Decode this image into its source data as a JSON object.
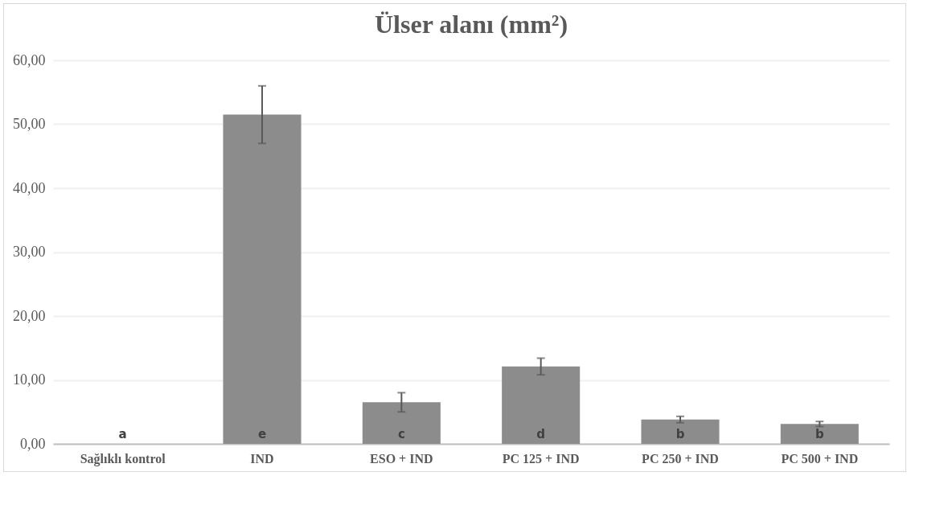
{
  "chart_data": {
    "type": "bar",
    "title": "Ülser alanı (mm²)",
    "categories": [
      "Sağlıklı kontrol",
      "IND",
      "ESO + IND",
      "PC 125 + IND",
      "PC 250 + IND",
      "PC 500 + IND"
    ],
    "values": [
      0,
      51.5,
      6.5,
      12.1,
      3.8,
      3.1
    ],
    "errors": [
      null,
      4.5,
      1.5,
      1.3,
      0.5,
      0.4
    ],
    "color": "#8c8c8c",
    "ylim": [
      0,
      60
    ],
    "yticks": [
      {
        "value": 0,
        "label": "0,00"
      },
      {
        "value": 10,
        "label": "10,00"
      },
      {
        "value": 20,
        "label": "20,00"
      },
      {
        "value": 30,
        "label": "30,00"
      },
      {
        "value": 40,
        "label": "40,00"
      },
      {
        "value": 50,
        "label": "50,00"
      },
      {
        "value": 60,
        "label": "60,00"
      }
    ],
    "grid": "y",
    "annotations": [
      "a",
      "e",
      "c",
      "d",
      "b",
      "b"
    ]
  }
}
